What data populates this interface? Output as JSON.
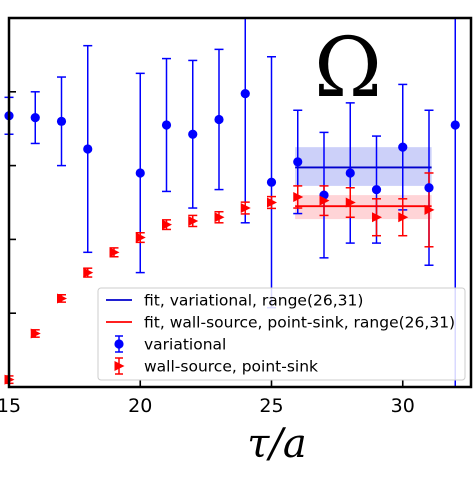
{
  "chart_data": {
    "type": "scatter",
    "title": "Ω",
    "xlabel": "τ/a",
    "ylabel": "",
    "xlim": [
      15,
      32.6
    ],
    "ylim": [
      0.0,
      1.0
    ],
    "xticks": [
      15,
      20,
      25,
      30
    ],
    "xtick_labels": [
      "15",
      "20",
      "25",
      "30"
    ],
    "yticks": [
      0.2,
      0.4,
      0.6,
      0.8
    ],
    "grid": false,
    "legend_position": "lower-center",
    "series": [
      {
        "name": "variational",
        "kind": "errorbar",
        "color": "#0000ff",
        "marker": "circle",
        "x": [
          15,
          16,
          17,
          18,
          20,
          21,
          22,
          23,
          24,
          25,
          26,
          27,
          28,
          29,
          30,
          31,
          32
        ],
        "y": [
          0.735,
          0.73,
          0.72,
          0.645,
          0.58,
          0.71,
          0.685,
          0.725,
          0.795,
          0.555,
          0.61,
          0.52,
          0.58,
          0.535,
          0.65,
          0.54,
          0.71
        ],
        "yerr": [
          0.05,
          0.07,
          0.12,
          0.28,
          0.27,
          0.18,
          0.2,
          0.19,
          0.35,
          0.34,
          0.14,
          0.17,
          0.19,
          0.145,
          0.17,
          0.21,
          0.75
        ]
      },
      {
        "name": "wall-source, point-sink",
        "kind": "errorbar",
        "color": "#ff0000",
        "marker": "triangle-right",
        "x": [
          15,
          16,
          17,
          18,
          19,
          20,
          21,
          22,
          23,
          24,
          25,
          26,
          27,
          28,
          29,
          30,
          31
        ],
        "y": [
          0.02,
          0.145,
          0.24,
          0.31,
          0.365,
          0.405,
          0.44,
          0.45,
          0.46,
          0.485,
          0.5,
          0.515,
          0.505,
          0.5,
          0.46,
          0.46,
          0.48
        ],
        "yerr": [
          0.01,
          0.01,
          0.01,
          0.012,
          0.012,
          0.013,
          0.013,
          0.015,
          0.015,
          0.016,
          0.016,
          0.03,
          0.04,
          0.04,
          0.05,
          0.05,
          0.1
        ]
      },
      {
        "name": "fit, variational, range(26,31)",
        "kind": "fit-band",
        "color": "#0000cc",
        "fill_color": "#aab0f5",
        "x": [
          25.9,
          31.1
        ],
        "value": 0.595,
        "band": [
          0.545,
          0.65
        ]
      },
      {
        "name": "fit, wall-source, point-sink, range(26,31)",
        "kind": "fit-band",
        "color": "#ff0000",
        "fill_color": "#ffb8bd",
        "x": [
          25.9,
          31.1
        ],
        "value": 0.49,
        "band": [
          0.455,
          0.52
        ]
      }
    ],
    "legend": [
      {
        "label": "fit, variational, range(26,31)",
        "kind": "line",
        "color": "#0000cc"
      },
      {
        "label": "fit, wall-source, point-sink, range(26,31)",
        "kind": "line",
        "color": "#ff0000"
      },
      {
        "label": "variational",
        "kind": "marker-circle",
        "color": "#0000ff"
      },
      {
        "label": "wall-source, point-sink",
        "kind": "marker-triangle",
        "color": "#ff0000"
      }
    ]
  }
}
